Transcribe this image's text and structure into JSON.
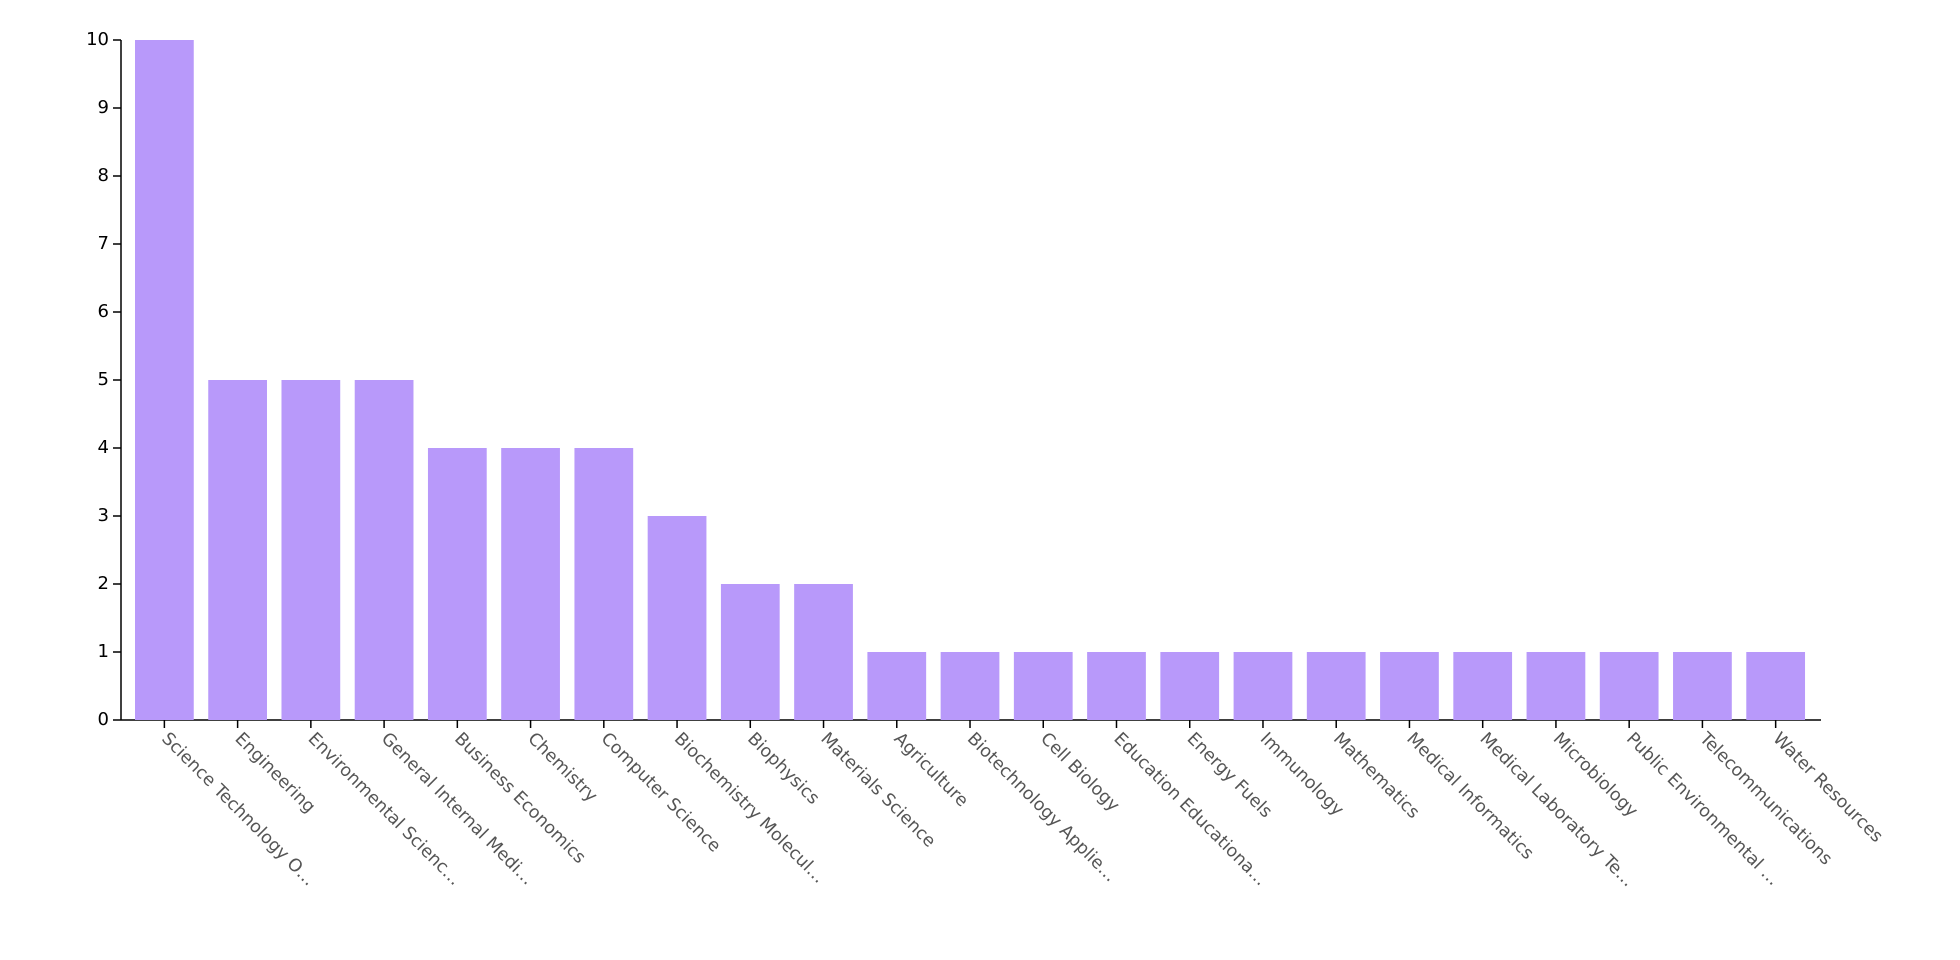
{
  "chart_data": {
    "type": "bar",
    "categories": [
      "Science Technology O…",
      "Engineering",
      "Environmental Scienc…",
      "General Internal Medi…",
      "Business Economics",
      "Chemistry",
      "Computer Science",
      "Biochemistry Molecul…",
      "Biophysics",
      "Materials Science",
      "Agriculture",
      "Biotechnology Applie…",
      "Cell Biology",
      "Education Educationa…",
      "Energy Fuels",
      "Immunology",
      "Mathematics",
      "Medical Informatics",
      "Medical Laboratory Te…",
      "Microbiology",
      "Public Environmental …",
      "Telecommunications",
      "Water Resources"
    ],
    "values": [
      10,
      5,
      5,
      5,
      4,
      4,
      4,
      3,
      2,
      2,
      1,
      1,
      1,
      1,
      1,
      1,
      1,
      1,
      1,
      1,
      1,
      1,
      1
    ],
    "color": "#b899fa",
    "ylim": [
      0,
      10
    ],
    "yticks": [
      0,
      1,
      2,
      3,
      4,
      5,
      6,
      7,
      8,
      9,
      10
    ],
    "grid": false
  }
}
